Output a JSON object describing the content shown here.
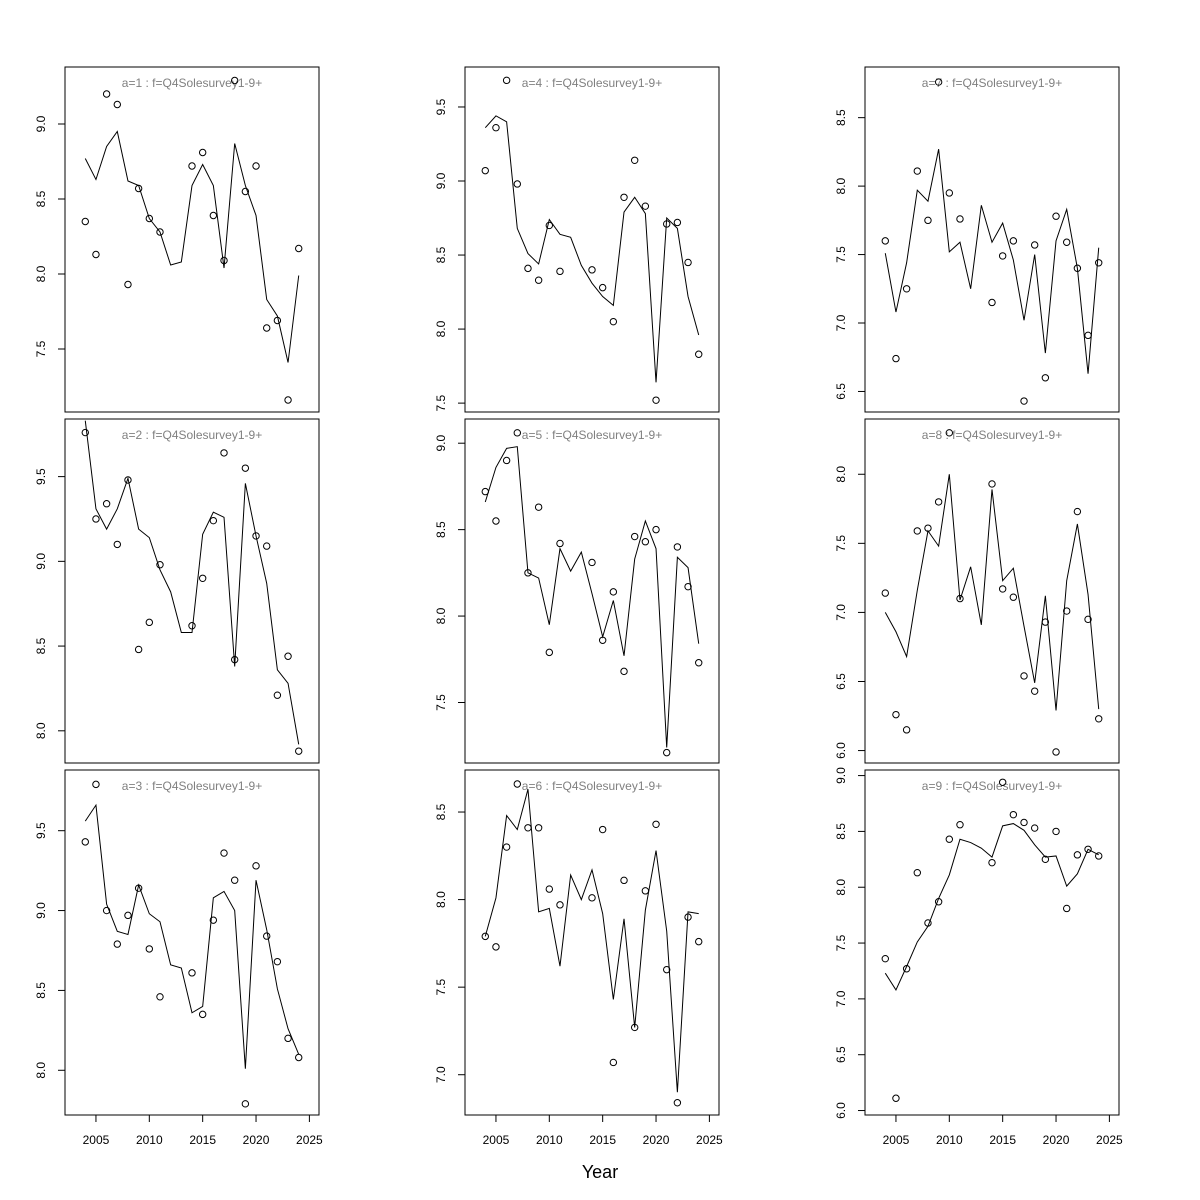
{
  "xlabel": "Year",
  "chart_data": [
    {
      "type": "line",
      "title": "a=1  :  f=Q4Solesurvey1-9+",
      "title_color": "#808080",
      "x": [
        2004,
        2005,
        2006,
        2007,
        2008,
        2009,
        2010,
        2011,
        2012,
        2013,
        2014,
        2015,
        2016,
        2017,
        2018,
        2019,
        2020,
        2021,
        2022,
        2023,
        2024
      ],
      "xlim": [
        2002.1,
        2025.9
      ],
      "ylim": [
        7.08,
        9.38
      ],
      "yticks": [
        7.5,
        {
          "value": 8,
          "label": "8.0"
        },
        8.5,
        {
          "value": 9,
          "label": "9.0"
        }
      ],
      "series": [
        {
          "color": "#000000",
          "marker": "circle",
          "values": [
            8.35,
            8.13,
            9.2,
            9.13,
            7.93,
            8.57,
            8.37,
            8.28,
            null,
            null,
            8.72,
            8.81,
            8.39,
            8.09,
            9.29,
            8.55,
            8.72,
            7.64,
            7.69,
            7.16,
            8.17
          ]
        },
        {
          "color": "#000000",
          "values": [
            8.77,
            8.63,
            8.85,
            8.95,
            8.62,
            8.59,
            8.37,
            8.28,
            8.06,
            8.08,
            8.59,
            8.73,
            8.59,
            8.04,
            8.87,
            8.59,
            8.39,
            7.83,
            7.72,
            7.41,
            7.99
          ]
        }
      ]
    },
    {
      "type": "line",
      "title": "a=2  :  f=Q4Solesurvey1-9+",
      "title_color": "#808080",
      "x": [
        2004,
        2005,
        2006,
        2007,
        2008,
        2009,
        2010,
        2011,
        2012,
        2013,
        2014,
        2015,
        2016,
        2017,
        2018,
        2019,
        2020,
        2021,
        2022,
        2023,
        2024
      ],
      "xlim": [
        2002.1,
        2025.9
      ],
      "ylim": [
        7.81,
        9.84
      ],
      "yticks": [
        {
          "value": 8,
          "label": "8.0"
        },
        8.5,
        {
          "value": 9,
          "label": "9.0"
        },
        9.5
      ],
      "series": [
        {
          "color": "#000000",
          "marker": "circle",
          "values": [
            9.76,
            9.25,
            9.34,
            9.1,
            9.48,
            8.48,
            8.64,
            8.98,
            null,
            null,
            8.62,
            8.9,
            9.24,
            9.64,
            8.42,
            9.55,
            9.15,
            9.09,
            8.21,
            8.44,
            7.88
          ]
        },
        {
          "color": "#000000",
          "values": [
            9.83,
            9.31,
            9.19,
            9.31,
            9.49,
            9.19,
            9.14,
            8.95,
            8.82,
            8.58,
            8.58,
            9.16,
            9.29,
            9.26,
            8.38,
            9.46,
            9.15,
            8.87,
            8.36,
            8.28,
            7.92
          ]
        }
      ]
    },
    {
      "type": "line",
      "title": "a=3  :  f=Q4Solesurvey1-9+",
      "title_color": "#808080",
      "x": [
        2004,
        2005,
        2006,
        2007,
        2008,
        2009,
        2010,
        2011,
        2012,
        2013,
        2014,
        2015,
        2016,
        2017,
        2018,
        2019,
        2020,
        2021,
        2022,
        2023,
        2024
      ],
      "xlim": [
        2002.1,
        2025.9
      ],
      "ylim": [
        7.72,
        9.88
      ],
      "yticks": [
        {
          "value": 8,
          "label": "8.0"
        },
        8.5,
        {
          "value": 9,
          "label": "9.0"
        },
        9.5
      ],
      "xticks": [
        2005,
        2010,
        2015,
        2020,
        2025
      ],
      "series": [
        {
          "color": "#000000",
          "marker": "circle",
          "values": [
            9.43,
            9.79,
            9.0,
            8.79,
            8.97,
            9.14,
            8.76,
            8.46,
            null,
            null,
            8.61,
            8.35,
            8.94,
            9.36,
            9.19,
            7.79,
            9.28,
            8.84,
            8.68,
            8.2,
            8.08
          ]
        },
        {
          "color": "#000000",
          "values": [
            9.56,
            9.66,
            9.04,
            8.87,
            8.85,
            9.16,
            8.98,
            8.93,
            8.66,
            8.64,
            8.36,
            8.4,
            9.08,
            9.12,
            9.0,
            8.01,
            9.19,
            8.88,
            8.51,
            8.26,
            8.1
          ]
        }
      ]
    },
    {
      "type": "line",
      "title": "a=4  :  f=Q4Solesurvey1-9+",
      "title_color": "#808080",
      "x": [
        2004,
        2005,
        2006,
        2007,
        2008,
        2009,
        2010,
        2011,
        2012,
        2013,
        2014,
        2015,
        2016,
        2017,
        2018,
        2019,
        2020,
        2021,
        2022,
        2023,
        2024
      ],
      "xlim": [
        2002.1,
        2025.9
      ],
      "ylim": [
        7.44,
        9.77
      ],
      "yticks": [
        7.5,
        {
          "value": 8,
          "label": "8.0"
        },
        8.5,
        {
          "value": 9,
          "label": "9.0"
        },
        9.5
      ],
      "series": [
        {
          "color": "#000000",
          "marker": "circle",
          "values": [
            9.07,
            9.36,
            9.68,
            8.98,
            8.41,
            8.33,
            8.7,
            8.39,
            null,
            null,
            8.4,
            8.28,
            8.05,
            8.89,
            9.14,
            8.83,
            7.52,
            8.71,
            8.72,
            8.45,
            7.83
          ]
        },
        {
          "color": "#000000",
          "values": [
            9.36,
            9.44,
            9.4,
            8.68,
            8.51,
            8.44,
            8.74,
            8.64,
            8.62,
            8.43,
            8.31,
            8.22,
            8.16,
            8.79,
            8.89,
            8.78,
            7.64,
            8.75,
            8.68,
            8.22,
            7.96
          ]
        }
      ]
    },
    {
      "type": "line",
      "title": "a=5  :  f=Q4Solesurvey1-9+",
      "title_color": "#808080",
      "x": [
        2004,
        2005,
        2006,
        2007,
        2008,
        2009,
        2010,
        2011,
        2012,
        2013,
        2014,
        2015,
        2016,
        2017,
        2018,
        2019,
        2020,
        2021,
        2022,
        2023,
        2024
      ],
      "xlim": [
        2002.1,
        2025.9
      ],
      "ylim": [
        7.15,
        9.14
      ],
      "yticks": [
        7.5,
        {
          "value": 8,
          "label": "8.0"
        },
        8.5,
        {
          "value": 9,
          "label": "9.0"
        }
      ],
      "series": [
        {
          "color": "#000000",
          "marker": "circle",
          "values": [
            8.72,
            8.55,
            8.9,
            9.06,
            8.25,
            8.63,
            7.79,
            8.42,
            null,
            null,
            8.31,
            7.86,
            8.14,
            7.68,
            8.46,
            8.43,
            8.5,
            7.21,
            8.4,
            8.17,
            7.73
          ]
        },
        {
          "color": "#000000",
          "values": [
            8.66,
            8.86,
            8.97,
            8.98,
            8.25,
            8.22,
            7.95,
            8.39,
            8.26,
            8.37,
            8.13,
            7.88,
            8.09,
            7.77,
            8.33,
            8.55,
            8.39,
            7.24,
            8.34,
            8.28,
            7.84
          ]
        }
      ]
    },
    {
      "type": "line",
      "title": "a=6  :  f=Q4Solesurvey1-9+",
      "title_color": "#808080",
      "x": [
        2004,
        2005,
        2006,
        2007,
        2008,
        2009,
        2010,
        2011,
        2012,
        2013,
        2014,
        2015,
        2016,
        2017,
        2018,
        2019,
        2020,
        2021,
        2022,
        2023,
        2024
      ],
      "xlim": [
        2002.1,
        2025.9
      ],
      "ylim": [
        6.77,
        8.74
      ],
      "yticks": [
        {
          "value": 7,
          "label": "7.0"
        },
        7.5,
        {
          "value": 8,
          "label": "8.0"
        },
        8.5
      ],
      "xticks": [
        2005,
        2010,
        2015,
        2020,
        2025
      ],
      "series": [
        {
          "color": "#000000",
          "marker": "circle",
          "values": [
            7.79,
            7.73,
            8.3,
            8.66,
            8.41,
            8.41,
            8.06,
            7.97,
            null,
            null,
            8.01,
            8.4,
            7.07,
            8.11,
            7.27,
            8.05,
            8.43,
            7.6,
            6.84,
            7.9,
            7.76
          ]
        },
        {
          "color": "#000000",
          "values": [
            7.79,
            8.01,
            8.48,
            8.4,
            8.63,
            7.93,
            7.95,
            7.62,
            8.14,
            8.0,
            8.17,
            7.92,
            7.43,
            7.89,
            7.27,
            7.94,
            8.28,
            7.82,
            6.9,
            7.93,
            7.92
          ]
        }
      ]
    },
    {
      "type": "line",
      "title": "a=7  :  f=Q4Solesurvey1-9+",
      "title_color": "#808080",
      "x": [
        2004,
        2005,
        2006,
        2007,
        2008,
        2009,
        2010,
        2011,
        2012,
        2013,
        2014,
        2015,
        2016,
        2017,
        2018,
        2019,
        2020,
        2021,
        2022,
        2023,
        2024
      ],
      "xlim": [
        2002.1,
        2025.9
      ],
      "ylim": [
        6.35,
        8.87
      ],
      "yticks": [
        6.5,
        {
          "value": 7,
          "label": "7.0"
        },
        7.5,
        {
          "value": 8,
          "label": "8.0"
        },
        8.5
      ],
      "series": [
        {
          "color": "#000000",
          "marker": "circle",
          "values": [
            7.6,
            6.74,
            7.25,
            8.11,
            7.75,
            8.76,
            7.95,
            7.76,
            null,
            null,
            7.15,
            7.49,
            7.6,
            6.43,
            7.57,
            6.6,
            7.78,
            7.59,
            7.4,
            6.91,
            7.44
          ]
        },
        {
          "color": "#000000",
          "values": [
            7.51,
            7.08,
            7.44,
            7.97,
            7.89,
            8.27,
            7.52,
            7.59,
            7.25,
            7.86,
            7.59,
            7.73,
            7.46,
            7.02,
            7.5,
            6.78,
            7.6,
            7.83,
            7.4,
            6.63,
            7.55
          ]
        }
      ]
    },
    {
      "type": "line",
      "title": "a=8  :  f=Q4Solesurvey1-9+",
      "title_color": "#808080",
      "x": [
        2004,
        2005,
        2006,
        2007,
        2008,
        2009,
        2010,
        2011,
        2012,
        2013,
        2014,
        2015,
        2016,
        2017,
        2018,
        2019,
        2020,
        2021,
        2022,
        2023,
        2024
      ],
      "xlim": [
        2002.1,
        2025.9
      ],
      "ylim": [
        5.91,
        8.4
      ],
      "yticks": [
        {
          "value": 6,
          "label": "6.0"
        },
        6.5,
        {
          "value": 7,
          "label": "7.0"
        },
        7.5,
        {
          "value": 8,
          "label": "8.0"
        }
      ],
      "series": [
        {
          "color": "#000000",
          "marker": "circle",
          "values": [
            7.14,
            6.26,
            6.15,
            7.59,
            7.61,
            7.8,
            8.3,
            7.1,
            null,
            null,
            7.93,
            7.17,
            7.11,
            6.54,
            6.43,
            6.93,
            5.99,
            7.01,
            7.73,
            6.95,
            6.23
          ]
        },
        {
          "color": "#000000",
          "values": [
            7.0,
            6.86,
            6.68,
            7.16,
            7.59,
            7.48,
            8.0,
            7.09,
            7.33,
            6.91,
            7.89,
            7.23,
            7.32,
            6.9,
            6.49,
            7.12,
            6.29,
            7.23,
            7.64,
            7.13,
            6.3
          ]
        }
      ]
    },
    {
      "type": "line",
      "title": "a=9  :  f=Q4Solesurvey1-9+",
      "title_color": "#808080",
      "x": [
        2004,
        2005,
        2006,
        2007,
        2008,
        2009,
        2010,
        2011,
        2012,
        2013,
        2014,
        2015,
        2016,
        2017,
        2018,
        2019,
        2020,
        2021,
        2022,
        2023,
        2024
      ],
      "xlim": [
        2002.1,
        2025.9
      ],
      "ylim": [
        5.96,
        9.05
      ],
      "yticks": [
        {
          "value": 6,
          "label": "6.0"
        },
        6.5,
        {
          "value": 7,
          "label": "7.0"
        },
        7.5,
        {
          "value": 8,
          "label": "8.0"
        },
        8.5,
        {
          "value": 9,
          "label": "9.0"
        }
      ],
      "xticks": [
        2005,
        2010,
        2015,
        2020,
        2025
      ],
      "series": [
        {
          "color": "#000000",
          "marker": "circle",
          "values": [
            7.36,
            6.11,
            7.27,
            8.13,
            7.68,
            7.87,
            8.43,
            8.56,
            null,
            null,
            8.22,
            8.94,
            8.65,
            8.58,
            8.53,
            8.25,
            8.5,
            7.81,
            8.29,
            8.34,
            8.28
          ]
        },
        {
          "color": "#000000",
          "values": [
            7.23,
            7.08,
            7.29,
            7.51,
            7.65,
            7.9,
            8.11,
            8.43,
            8.4,
            8.35,
            8.27,
            8.55,
            8.57,
            8.51,
            8.38,
            8.27,
            8.28,
            8.01,
            8.12,
            8.34,
            8.29
          ]
        }
      ]
    }
  ]
}
